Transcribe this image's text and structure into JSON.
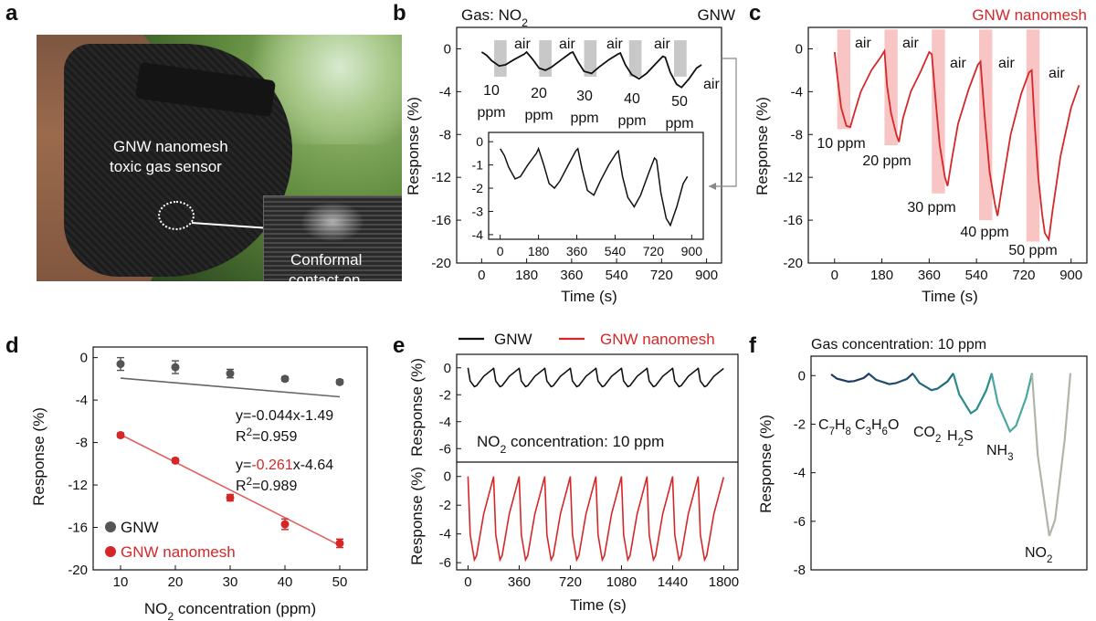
{
  "panel_letters": [
    "a",
    "b",
    "c",
    "d",
    "e",
    "f"
  ],
  "photo": {
    "label1": "GNW nanomesh",
    "label2": "toxic gas sensor",
    "inset_label1": "Conformal",
    "inset_label2": "contact on"
  },
  "colors": {
    "black": "#111111",
    "red": "#d62728",
    "red_band": "#f8c4c4",
    "gray_band": "#c8c8c8",
    "grid": "#000000"
  },
  "chart_data": [
    {
      "panel": "b",
      "type": "line",
      "title_left": "Gas: NO",
      "title_left_sub": "2",
      "title_right": "GNW",
      "xlabel": "Time (s)",
      "ylabel": "Response (%)",
      "xlim": [
        -100,
        960
      ],
      "ylim": [
        -20,
        2
      ],
      "xticks": [
        "0",
        "180",
        "360",
        "540",
        "720",
        "900"
      ],
      "yticks": [
        "0",
        "-4",
        "-8",
        "-12",
        "-16",
        "-20"
      ],
      "series": [
        {
          "values": [
            [
              0,
              -0.3
            ],
            [
              20,
              -0.6
            ],
            [
              40,
              -1.1
            ],
            [
              70,
              -1.6
            ],
            [
              95,
              -1.5
            ],
            [
              130,
              -1.0
            ],
            [
              170,
              -0.5
            ],
            [
              180,
              -0.3
            ],
            [
              205,
              -1.0
            ],
            [
              230,
              -1.8
            ],
            [
              255,
              -2.0
            ],
            [
              280,
              -1.7
            ],
            [
              320,
              -1.0
            ],
            [
              355,
              -0.4
            ],
            [
              365,
              -0.3
            ],
            [
              385,
              -1.2
            ],
            [
              410,
              -2.1
            ],
            [
              440,
              -2.3
            ],
            [
              470,
              -1.7
            ],
            [
              510,
              -1.0
            ],
            [
              545,
              -0.5
            ],
            [
              555,
              -0.4
            ],
            [
              575,
              -1.5
            ],
            [
              600,
              -2.4
            ],
            [
              630,
              -2.8
            ],
            [
              660,
              -2.3
            ],
            [
              700,
              -1.3
            ],
            [
              725,
              -0.7
            ],
            [
              735,
              -0.8
            ],
            [
              755,
              -2.2
            ],
            [
              780,
              -3.3
            ],
            [
              800,
              -3.6
            ],
            [
              830,
              -2.8
            ],
            [
              860,
              -1.8
            ],
            [
              880,
              -1.5
            ]
          ]
        }
      ],
      "bands": [
        [
          50,
          100
        ],
        [
          230,
          280
        ],
        [
          410,
          460
        ],
        [
          590,
          640
        ],
        [
          770,
          820
        ]
      ],
      "annotations": {
        "air": [
          "air",
          "air",
          "air",
          "air",
          "air"
        ],
        "conc_value": [
          "10",
          "20",
          "30",
          "40",
          "50"
        ],
        "conc_unit": "ppm"
      },
      "inset": {
        "xticks": [
          "0",
          "180",
          "360",
          "540",
          "720",
          "900"
        ],
        "yticks": [
          "0",
          "-1",
          "-2",
          "-3",
          "-4"
        ]
      }
    },
    {
      "panel": "c",
      "type": "line",
      "title": "GNW nanomesh",
      "xlabel": "Time (s)",
      "ylabel": "Response (%)",
      "xlim": [
        -100,
        960
      ],
      "ylim": [
        -20,
        2
      ],
      "xticks": [
        "0",
        "180",
        "360",
        "540",
        "720",
        "900"
      ],
      "yticks": [
        "0",
        "-4",
        "-8",
        "-12",
        "-16",
        "-20"
      ],
      "series": [
        {
          "color": "#d62728",
          "values": [
            [
              0,
              -0.3
            ],
            [
              10,
              -2.5
            ],
            [
              25,
              -5.5
            ],
            [
              45,
              -7.2
            ],
            [
              60,
              -7.3
            ],
            [
              75,
              -6.0
            ],
            [
              100,
              -4.0
            ],
            [
              140,
              -2.0
            ],
            [
              175,
              -0.8
            ],
            [
              190,
              -0.2
            ],
            [
              200,
              -3.5
            ],
            [
              215,
              -6.0
            ],
            [
              235,
              -8.0
            ],
            [
              245,
              -8.7
            ],
            [
              260,
              -6.5
            ],
            [
              290,
              -4.0
            ],
            [
              330,
              -2.0
            ],
            [
              360,
              -0.3
            ],
            [
              370,
              -0.5
            ],
            [
              385,
              -5.0
            ],
            [
              400,
              -9.0
            ],
            [
              420,
              -12.0
            ],
            [
              430,
              -12.8
            ],
            [
              445,
              -10.5
            ],
            [
              470,
              -7.0
            ],
            [
              510,
              -3.8
            ],
            [
              545,
              -1.5
            ],
            [
              555,
              -1.2
            ],
            [
              570,
              -6.0
            ],
            [
              590,
              -11.5
            ],
            [
              610,
              -14.5
            ],
            [
              620,
              -15.6
            ],
            [
              640,
              -12.5
            ],
            [
              670,
              -8.0
            ],
            [
              710,
              -4.2
            ],
            [
              740,
              -2.2
            ],
            [
              750,
              -2.0
            ],
            [
              760,
              -6.5
            ],
            [
              775,
              -12.0
            ],
            [
              790,
              -15.5
            ],
            [
              800,
              -17.2
            ],
            [
              815,
              -17.8
            ],
            [
              830,
              -15.0
            ],
            [
              860,
              -10.0
            ],
            [
              900,
              -5.5
            ],
            [
              930,
              -3.4
            ]
          ]
        }
      ],
      "bands": [
        [
          50,
          100
        ],
        [
          230,
          280
        ],
        [
          410,
          460
        ],
        [
          590,
          640
        ],
        [
          770,
          820
        ]
      ],
      "annotations": {
        "air": [
          "air",
          "air",
          "air",
          "air",
          "air",
          "air"
        ],
        "conc": [
          "10 ppm",
          "20 ppm",
          "30 ppm",
          "40 ppm",
          "50 ppm"
        ]
      }
    },
    {
      "panel": "d",
      "type": "scatter",
      "xlabel_pre": "NO",
      "xlabel_sub": "2",
      "xlabel_post": " concentration (ppm)",
      "ylabel": "Response (%)",
      "xlim": [
        5,
        55
      ],
      "ylim": [
        -20,
        1
      ],
      "xticks": [
        "10",
        "20",
        "30",
        "40",
        "50"
      ],
      "yticks": [
        "0",
        "-4",
        "-8",
        "-12",
        "-16",
        "-20"
      ],
      "series": [
        {
          "name": "GNW",
          "color": "#555555",
          "x": [
            10,
            20,
            30,
            40,
            50
          ],
          "y": [
            -0.6,
            -0.9,
            -1.5,
            -2.0,
            -2.3
          ],
          "err": [
            0.6,
            0.6,
            0.4,
            0.2,
            0.2
          ],
          "fit": [
            -0.044,
            -1.49
          ]
        },
        {
          "name": "GNW nanomesh",
          "color": "#d62728",
          "x": [
            10,
            20,
            30,
            40,
            50
          ],
          "y": [
            -7.3,
            -9.7,
            -13.2,
            -15.7,
            -17.5
          ],
          "err": [
            0.2,
            0.2,
            0.3,
            0.5,
            0.4
          ],
          "fit": [
            -0.261,
            -4.64
          ]
        }
      ],
      "equations": {
        "gnw_eq": "y=-0.044x-1.49",
        "gnw_r2_pre": "R",
        "gnw_r2_sup": "2",
        "gnw_r2_post": "=0.959",
        "mesh_eq_pre": "y=",
        "mesh_eq_red": "-0.261",
        "mesh_eq_post": "x-4.64",
        "mesh_r2_pre": "R",
        "mesh_r2_sup": "2",
        "mesh_r2_post": "=0.989"
      }
    },
    {
      "panel": "e",
      "type": "line",
      "legend": [
        "GNW",
        "GNW nanomesh"
      ],
      "annotation": "NO",
      "annotation_sub": "2",
      "annotation_post": " concentration: 10 ppm",
      "xlabel": "Time (s)",
      "ylabel": "Response (%)",
      "xlim": [
        -80,
        1900
      ],
      "xticks": [
        "0",
        "360",
        "720",
        "1080",
        "1440",
        "1800"
      ],
      "yticks_top": [
        "0",
        "-2",
        "-4",
        "-6"
      ],
      "yticks_bottom": [
        "0",
        "-2",
        "-4",
        "-6"
      ],
      "top": {
        "ylim": [
          -7,
          1
        ],
        "period": 180,
        "cycles": 10,
        "min": -1.4
      },
      "bottom": {
        "ylim": [
          -6.5,
          1
        ],
        "period": 180,
        "cycles": 10,
        "min": -5.8
      }
    },
    {
      "panel": "f",
      "type": "line",
      "title": "Gas concentration: 10 ppm",
      "ylabel": "Response (%)",
      "ylim": [
        -8,
        0.8
      ],
      "yticks": [
        "0",
        "-2",
        "-4",
        "-6",
        "-8"
      ],
      "gases": [
        {
          "label": "C7H8",
          "main": "C",
          "sub1": "7",
          "mid": "H",
          "sub2": "8",
          "min": -0.25,
          "color": "#1f3b63"
        },
        {
          "label": "C3H6O",
          "main": "C",
          "sub1": "3",
          "mid": "H",
          "sub2": "6",
          "post": "O",
          "min": -0.35,
          "color": "#1f4d6e"
        },
        {
          "label": "CO2",
          "main": "CO",
          "sub1": "2",
          "min": -0.6,
          "color": "#1f6b7a"
        },
        {
          "label": "H2S",
          "main": "H",
          "sub1": "2",
          "post": "S",
          "min": -1.55,
          "color": "#2a8c8c"
        },
        {
          "label": "NH3",
          "main": "NH",
          "sub1": "3",
          "min": -2.3,
          "color": "#4aa8a0"
        },
        {
          "label": "NO2",
          "main": "NO",
          "sub1": "2",
          "min": -6.6,
          "color": "#b0b5a8"
        }
      ]
    }
  ]
}
